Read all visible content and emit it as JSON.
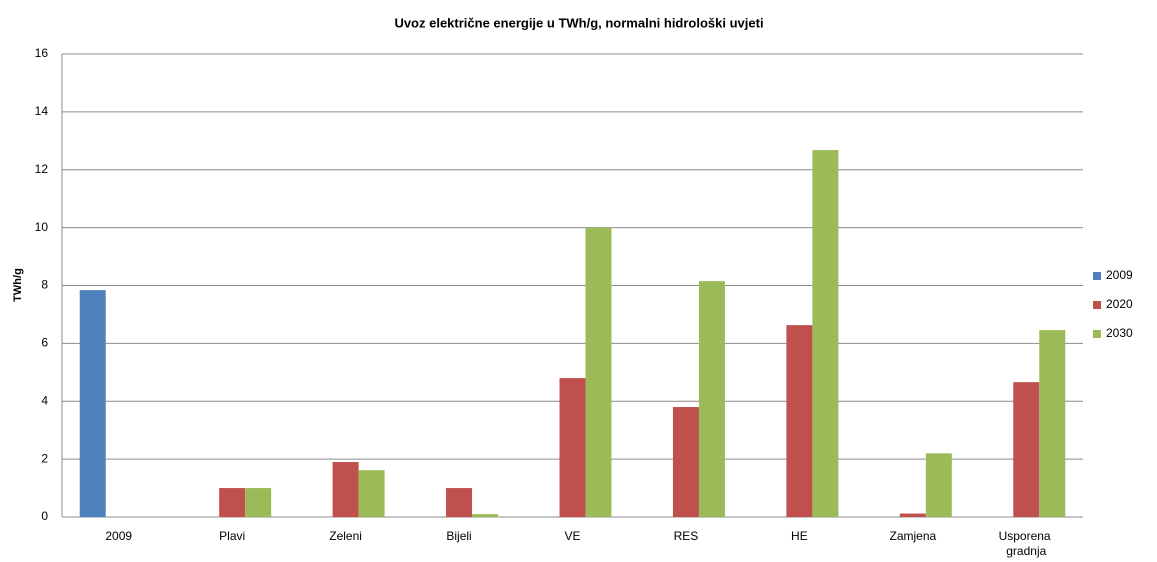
{
  "chart_data": {
    "type": "bar",
    "title": "Uvoz električne energije u TWh/g, normalni hidrološki uvjeti",
    "y_label": "TWh/g",
    "categories": [
      "2009",
      "Plavi",
      "Zeleni",
      "Bijeli",
      "VE",
      "RES",
      "HE",
      "Zamjena",
      "Usporena gradnja"
    ],
    "series": [
      {
        "name": "2009",
        "color": "#4f81bd",
        "values": [
          7.84,
          null,
          null,
          null,
          null,
          null,
          null,
          null,
          null
        ]
      },
      {
        "name": "2020",
        "color": "#c0504d",
        "values": [
          null,
          1.0,
          1.9,
          1.0,
          4.8,
          3.8,
          6.63,
          0.12,
          4.66
        ]
      },
      {
        "name": "2030",
        "color": "#9bbb59",
        "values": [
          null,
          1.0,
          1.62,
          0.1,
          10.0,
          8.15,
          12.68,
          2.2,
          6.46
        ]
      }
    ],
    "ylim": [
      0,
      16
    ],
    "yticks": [
      0,
      2,
      4,
      6,
      8,
      10,
      12,
      14,
      16
    ],
    "grid": true,
    "legend": "right"
  }
}
